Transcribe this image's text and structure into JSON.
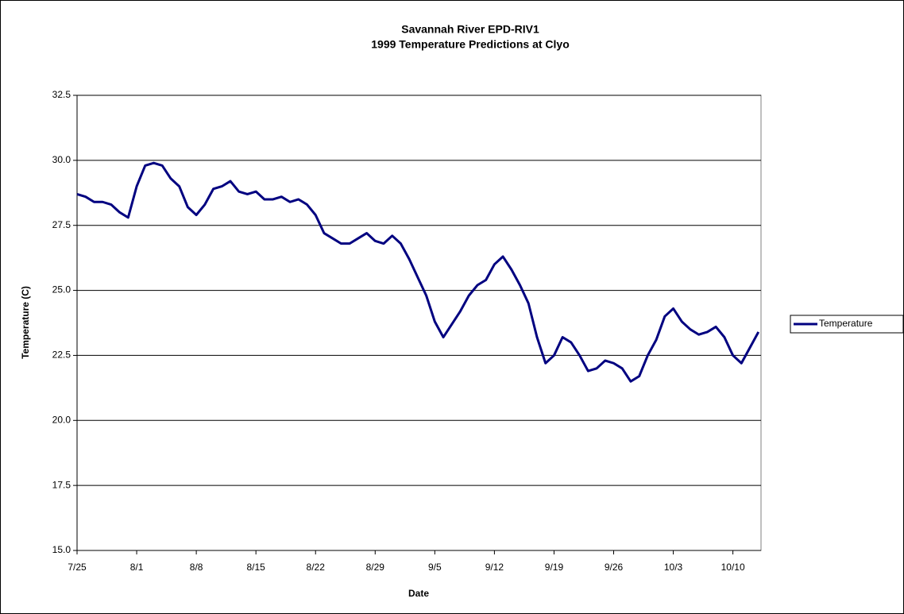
{
  "chart_data": {
    "type": "line",
    "title": "Savannah River EPD-RIV1",
    "subtitle": "1999 Temperature Predictions at Clyo",
    "xlabel": "Date",
    "ylabel": "Temperature (C)",
    "x": [
      0,
      1,
      2,
      3,
      4,
      5,
      6,
      7,
      8,
      9,
      10,
      11,
      12,
      13,
      14,
      15,
      16,
      17,
      18,
      19,
      20,
      21,
      22,
      23,
      24,
      25,
      26,
      27,
      28,
      29,
      30,
      31,
      32,
      33,
      34,
      35,
      36,
      37,
      38,
      39,
      40,
      41,
      42,
      43,
      44,
      45,
      46,
      47,
      48,
      49,
      50,
      51,
      52,
      53,
      54,
      55,
      56,
      57,
      58,
      59,
      60,
      61,
      62,
      63,
      64,
      65,
      66,
      67,
      68,
      69,
      70,
      71,
      72,
      73,
      74,
      75,
      76,
      77,
      78,
      79,
      80
    ],
    "series": [
      {
        "name": "Temperature",
        "color": "#000080",
        "values": [
          28.7,
          28.6,
          28.4,
          28.4,
          28.3,
          28.0,
          27.8,
          29.0,
          29.8,
          29.9,
          29.8,
          29.3,
          29.0,
          28.2,
          27.9,
          28.3,
          28.9,
          29.0,
          29.2,
          28.8,
          28.7,
          28.8,
          28.5,
          28.5,
          28.6,
          28.4,
          28.5,
          28.3,
          27.9,
          27.2,
          27.0,
          26.8,
          26.8,
          27.0,
          27.2,
          26.9,
          26.8,
          27.1,
          26.8,
          26.2,
          25.5,
          24.8,
          23.8,
          23.2,
          23.7,
          24.2,
          24.8,
          25.2,
          25.4,
          26.0,
          26.3,
          25.8,
          25.2,
          24.5,
          23.2,
          22.2,
          22.5,
          23.2,
          23.0,
          22.5,
          21.9,
          22.0,
          22.3,
          22.2,
          22.0,
          21.5,
          21.7,
          22.5,
          23.1,
          24.0,
          24.3,
          23.8,
          23.5,
          23.3,
          23.4,
          23.6,
          23.2,
          22.5,
          22.2,
          22.8,
          23.4
        ]
      }
    ],
    "xlim": [
      0,
      80.3
    ],
    "xticks": [
      {
        "value": 0,
        "label": "7/25"
      },
      {
        "value": 7,
        "label": "8/1"
      },
      {
        "value": 14,
        "label": "8/8"
      },
      {
        "value": 21,
        "label": "8/15"
      },
      {
        "value": 28,
        "label": "8/22"
      },
      {
        "value": 35,
        "label": "8/29"
      },
      {
        "value": 42,
        "label": "9/5"
      },
      {
        "value": 49,
        "label": "9/12"
      },
      {
        "value": 56,
        "label": "9/19"
      },
      {
        "value": 63,
        "label": "9/26"
      },
      {
        "value": 70,
        "label": "10/3"
      },
      {
        "value": 77,
        "label": "10/10"
      }
    ],
    "ylim": [
      15,
      32.5
    ],
    "yticks": [
      {
        "value": 15,
        "label": "15.0"
      },
      17.5,
      {
        "value": 20,
        "label": "20.0"
      },
      22.5,
      {
        "value": 25,
        "label": "25.0"
      },
      27.5,
      {
        "value": 30,
        "label": "30.0"
      },
      32.5
    ],
    "grid": true,
    "legend": "right"
  }
}
